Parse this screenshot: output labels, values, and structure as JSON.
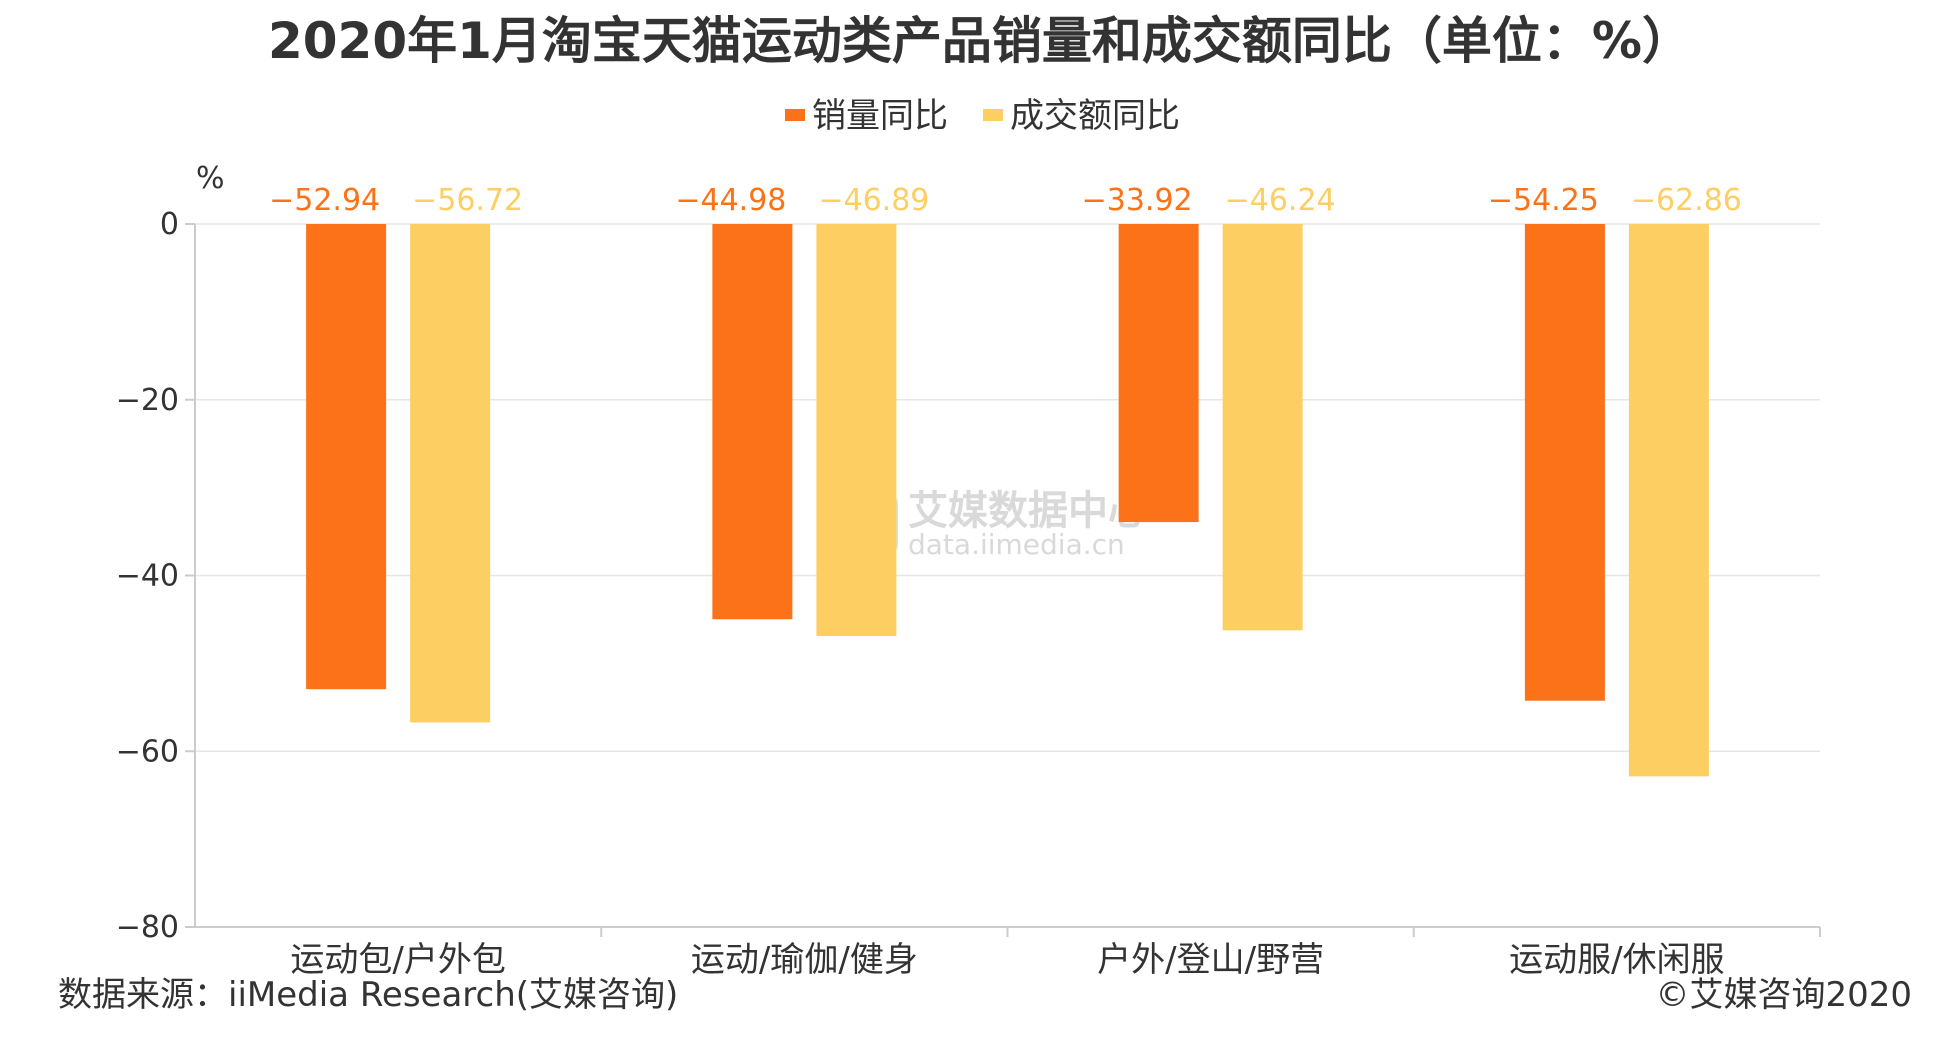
{
  "colors": {
    "sales": "#fb7219",
    "gmv": "#fdcf63",
    "axis": "#cccccc",
    "grid": "#e6e6e6"
  },
  "footer": {
    "source": "数据来源：iiMedia Research(艾媒咨询)",
    "copyright": "©艾媒咨询2020"
  },
  "watermark": {
    "icon_char": "艾",
    "name": "艾媒数据中心",
    "url": "data.iimedia.cn"
  },
  "chart_data": {
    "type": "bar",
    "title": "2020年1月淘宝天猫运动类产品销量和成交额同比（单位：%）",
    "ylabel": "%",
    "ylim": [
      -80,
      0
    ],
    "yticks": [
      "0",
      "−20",
      "−40",
      "−60",
      "−80"
    ],
    "ytick_values": [
      0,
      -20,
      -40,
      -60,
      -80
    ],
    "legend_position": "top-center",
    "grid": true,
    "categories": [
      "运动包/户外包",
      "运动/瑜伽/健身",
      "户外/登山/野营",
      "运动服/休闲服"
    ],
    "series": [
      {
        "name": "销量同比",
        "values": [
          -52.94,
          -44.98,
          -33.92,
          -54.25
        ],
        "labels": [
          "−52.94",
          "−44.98",
          "−33.92",
          "−54.25"
        ]
      },
      {
        "name": "成交额同比",
        "values": [
          -56.72,
          -46.89,
          -46.24,
          -62.86
        ],
        "labels": [
          "−56.72",
          "−46.89",
          "−46.24",
          "−62.86"
        ]
      }
    ]
  }
}
